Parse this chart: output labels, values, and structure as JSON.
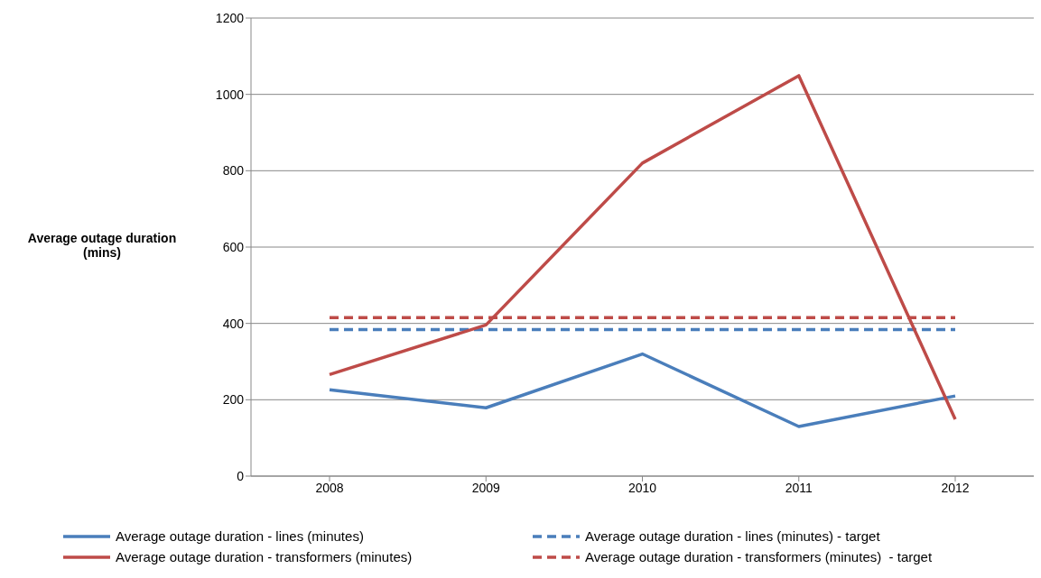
{
  "chart_data": {
    "type": "line",
    "ylabel": "Average outage duration (mins)",
    "categories": [
      "2008",
      "2009",
      "2010",
      "2011",
      "2012"
    ],
    "series": [
      {
        "name": "Average outage duration - lines (minutes)",
        "color": "#4a7ebb",
        "line_style": "solid",
        "values": [
          226,
          179,
          320,
          130,
          210
        ]
      },
      {
        "name": "Average outage duration - lines (minutes) - target",
        "color": "#4a7ebb",
        "line_style": "dashed",
        "values": [
          384,
          384,
          384,
          384,
          384
        ]
      },
      {
        "name": "Average outage duration - transformers (minutes)",
        "color": "#be4b48",
        "line_style": "solid",
        "values": [
          266,
          396,
          820,
          1049,
          149
        ]
      },
      {
        "name": "Average outage duration - transformers (minutes)  - target",
        "color": "#be4b48",
        "line_style": "dashed",
        "values": [
          415,
          415,
          415,
          415,
          415
        ]
      }
    ],
    "ylim": [
      0,
      1200
    ],
    "yticks": [
      0,
      200,
      400,
      600,
      800,
      1000,
      1200
    ],
    "grid": "y",
    "legend": "bottom",
    "marker": "none"
  }
}
